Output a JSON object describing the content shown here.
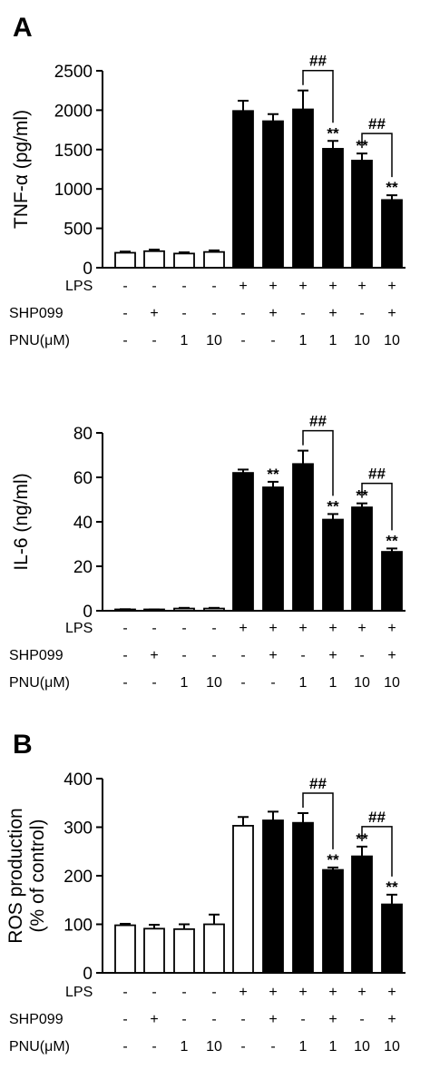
{
  "panels": [
    {
      "letter": "A"
    },
    {
      "letter": ""
    },
    {
      "letter": "B"
    }
  ],
  "conditions": {
    "rows": [
      {
        "label": "LPS",
        "values": [
          "-",
          "-",
          "-",
          "-",
          "+",
          "+",
          "+",
          "+",
          "+",
          "+"
        ]
      },
      {
        "label": "SHP099",
        "values": [
          "-",
          "+",
          "-",
          "-",
          "-",
          "+",
          "-",
          "+",
          "-",
          "+"
        ]
      },
      {
        "label": "PNU(μM)",
        "values": [
          "-",
          "-",
          "1",
          "10",
          "-",
          "-",
          "1",
          "1",
          "10",
          "10"
        ]
      }
    ]
  },
  "chart_data": [
    {
      "type": "bar",
      "ylabel": "TNF-α (pg/ml)",
      "ylim": [
        0,
        2500
      ],
      "yticks": [
        "0",
        "500",
        "1000",
        "1500",
        "2000",
        "2500"
      ],
      "yticks_values": [
        0,
        500,
        1000,
        1500,
        2000,
        2500
      ],
      "values": [
        190,
        210,
        180,
        200,
        1990,
        1860,
        2010,
        1510,
        1360,
        860
      ],
      "errors": [
        15,
        20,
        15,
        20,
        130,
        90,
        240,
        100,
        90,
        60
      ],
      "fill": [
        "white",
        "white",
        "white",
        "white",
        "black",
        "black",
        "black",
        "black",
        "black",
        "black"
      ],
      "stars": [
        "",
        "",
        "",
        "",
        "",
        "",
        "",
        "**",
        "**",
        "**"
      ],
      "brackets": [
        {
          "from": 6,
          "to": 7,
          "label": "##"
        },
        {
          "from": 8,
          "to": 9,
          "label": "##"
        }
      ]
    },
    {
      "type": "bar",
      "ylabel": "IL-6 (ng/ml)",
      "ylim": [
        0,
        80
      ],
      "yticks": [
        "0",
        "20",
        "40",
        "60",
        "80"
      ],
      "yticks_values": [
        0,
        20,
        40,
        60,
        80
      ],
      "values": [
        0.5,
        0.4,
        1.0,
        1.0,
        62,
        55.5,
        66,
        41,
        46.5,
        26.5
      ],
      "errors": [
        0.2,
        0.2,
        0.3,
        0.3,
        1.5,
        2.5,
        6,
        2.5,
        1.8,
        1.5
      ],
      "fill": [
        "white",
        "white",
        "white",
        "white",
        "black",
        "black",
        "black",
        "black",
        "black",
        "black"
      ],
      "stars": [
        "",
        "",
        "",
        "",
        "",
        "**",
        "",
        "**",
        "**",
        "**"
      ],
      "brackets": [
        {
          "from": 6,
          "to": 7,
          "label": "##"
        },
        {
          "from": 8,
          "to": 9,
          "label": "##"
        }
      ]
    },
    {
      "type": "bar",
      "ylabel": "ROS production",
      "ylabel2": "(% of control)",
      "ylim": [
        0,
        400
      ],
      "yticks": [
        "0",
        "100",
        "200",
        "300",
        "400"
      ],
      "yticks_values": [
        0,
        100,
        200,
        300,
        400
      ],
      "values": [
        98,
        91,
        90,
        100,
        303,
        314,
        309,
        212,
        240,
        141
      ],
      "errors": [
        3,
        8,
        10,
        20,
        18,
        18,
        20,
        5,
        20,
        20
      ],
      "fill": [
        "white",
        "white",
        "white",
        "white",
        "white",
        "black",
        "black",
        "black",
        "black",
        "black"
      ],
      "stars": [
        "",
        "",
        "",
        "",
        "",
        "",
        "",
        "**",
        "**",
        "**"
      ],
      "brackets": [
        {
          "from": 6,
          "to": 7,
          "label": "##"
        },
        {
          "from": 8,
          "to": 9,
          "label": "##"
        }
      ]
    }
  ]
}
